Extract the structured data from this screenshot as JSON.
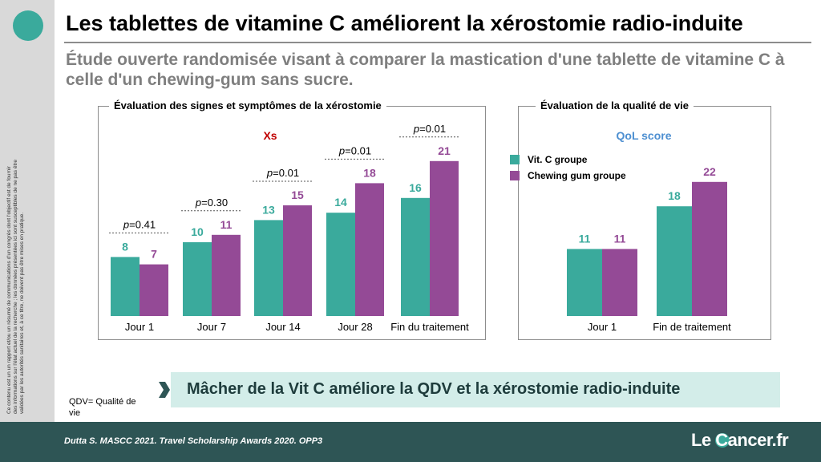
{
  "header": {
    "title": "Les tablettes de vitamine C améliorent la xérostomie radio-induite",
    "subtitle": "Étude ouverte randomisée visant à comparer la mastication d'une tablette de vitamine C à celle d'un chewing-gum sans sucre."
  },
  "disclaimer": "Ce contenu est un un rapport et/ou un résumé de communications d'un congrès dont l'objectif est de fournir des informations sur l'état actuel de la recherche ; les données présentées ici sont susceptibles de ne pas être validées par les autorités sanitaires et, à ce titre, ne doivent pas être mises en pratique.",
  "colors": {
    "vitc": "#3aaa9c",
    "gum": "#944a96",
    "teal_text": "#3aaa9c",
    "purple_text": "#944a96",
    "qol_title": "#4d8fd1",
    "xs_title": "#c00000"
  },
  "chart_data": [
    {
      "type": "bar",
      "panel_title": "Évaluation des signes et symptômes de la xérostomie",
      "title": "Xs",
      "categories": [
        "Jour 1",
        "Jour 7",
        "Jour 14",
        "Jour 28",
        "Fin du traitement"
      ],
      "series": [
        {
          "name": "Vit. C groupe",
          "values": [
            8,
            10,
            13,
            14,
            16
          ]
        },
        {
          "name": "Chewing gum groupe",
          "values": [
            7,
            11,
            15,
            18,
            21
          ]
        }
      ],
      "p_values": [
        "0.41",
        "0.30",
        "0.01",
        "0.01",
        "0.01"
      ],
      "p_label": "p"
    },
    {
      "type": "bar",
      "panel_title": "Évaluation de la qualité de vie",
      "title": "QoL score",
      "categories": [
        "Jour 1",
        "Fin de traitement"
      ],
      "series": [
        {
          "name": "Vit. C groupe",
          "values": [
            11,
            18
          ]
        },
        {
          "name": "Chewing gum groupe",
          "values": [
            11,
            22
          ]
        }
      ],
      "legend": [
        "Vit. C groupe",
        "Chewing gum groupe"
      ]
    }
  ],
  "callout": "Mâcher de la Vit C améliore la QDV et la xérostomie radio-induite",
  "qdv_note": "QDV= Qualité de vie",
  "footer": {
    "reference": "Dutta S. MASCC 2021. Travel Scholarship Awards 2020. OPP3",
    "brand": "Le Cancer.fr"
  }
}
